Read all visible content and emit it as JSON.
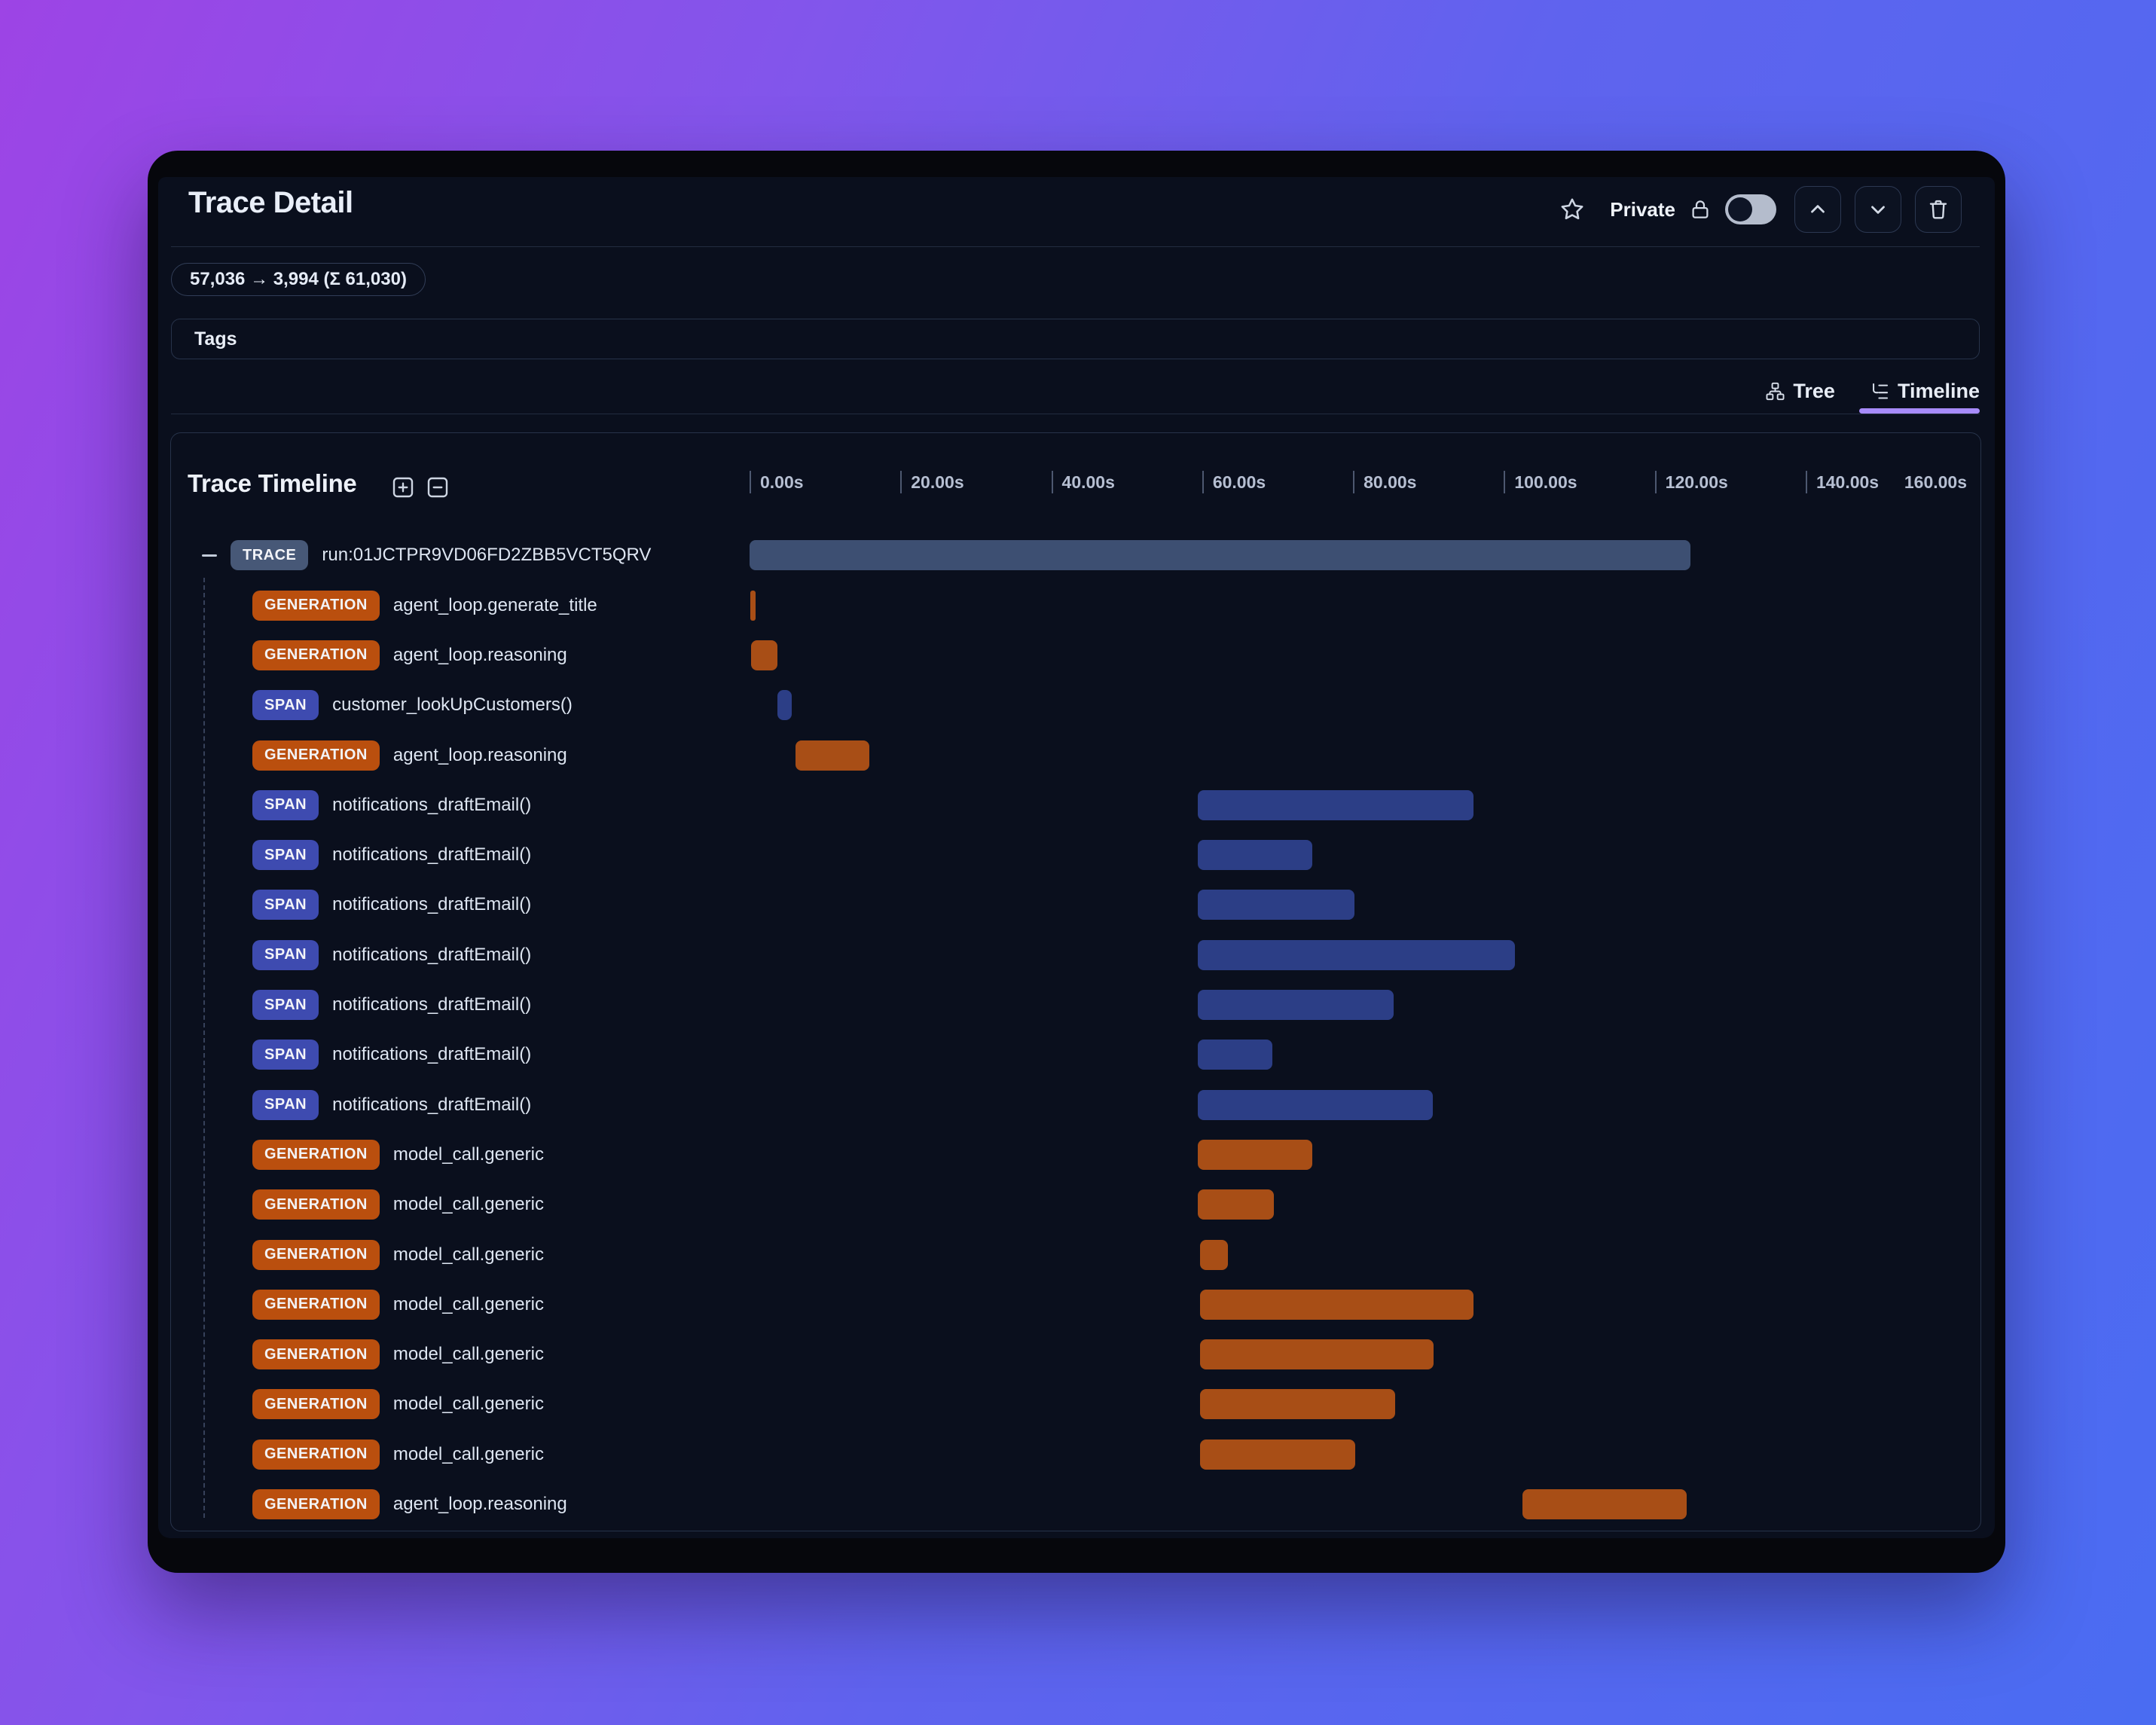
{
  "header": {
    "title": "Trace Detail",
    "privacy_label": "Private",
    "privacy_toggle_state": "off"
  },
  "token_usage": "57,036 → 3,994 (Σ 61,030)",
  "tags_label": "Tags",
  "view_tabs": {
    "tree": "Tree",
    "timeline": "Timeline",
    "active": "Timeline"
  },
  "timeline": {
    "title": "Trace Timeline",
    "axis": {
      "tick_seconds": [
        0,
        20,
        40,
        60,
        80,
        100,
        120,
        140
      ],
      "tick_labels": [
        "0.00s",
        "20.00s",
        "40.00s",
        "60.00s",
        "80.00s",
        "100.00s",
        "120.00s",
        "140.00s"
      ],
      "end_label": "160.00s"
    },
    "rows": [
      {
        "type": "TRACE",
        "label": "run:01JCTPR9VD06FD2ZBB5VCT5QRV",
        "depth": 0,
        "collapsible": true,
        "start_s": 0.0,
        "end_s": 124.7
      },
      {
        "type": "GENERATION",
        "label": "agent_loop.generate_title",
        "depth": 1,
        "collapsible": false,
        "start_s": 0.1,
        "end_s": 0.8
      },
      {
        "type": "GENERATION",
        "label": "agent_loop.reasoning",
        "depth": 1,
        "collapsible": false,
        "start_s": 0.2,
        "end_s": 3.7
      },
      {
        "type": "SPAN",
        "label": "customer_lookUpCustomers()",
        "depth": 1,
        "collapsible": false,
        "start_s": 3.7,
        "end_s": 5.6
      },
      {
        "type": "GENERATION",
        "label": "agent_loop.reasoning",
        "depth": 1,
        "collapsible": false,
        "start_s": 6.1,
        "end_s": 15.9
      },
      {
        "type": "SPAN",
        "label": "notifications_draftEmail()",
        "depth": 1,
        "collapsible": false,
        "start_s": 59.4,
        "end_s": 96.0
      },
      {
        "type": "SPAN",
        "label": "notifications_draftEmail()",
        "depth": 1,
        "collapsible": false,
        "start_s": 59.4,
        "end_s": 74.6
      },
      {
        "type": "SPAN",
        "label": "notifications_draftEmail()",
        "depth": 1,
        "collapsible": false,
        "start_s": 59.4,
        "end_s": 80.2
      },
      {
        "type": "SPAN",
        "label": "notifications_draftEmail()",
        "depth": 1,
        "collapsible": false,
        "start_s": 59.4,
        "end_s": 101.5
      },
      {
        "type": "SPAN",
        "label": "notifications_draftEmail()",
        "depth": 1,
        "collapsible": false,
        "start_s": 59.4,
        "end_s": 85.4
      },
      {
        "type": "SPAN",
        "label": "notifications_draftEmail()",
        "depth": 1,
        "collapsible": false,
        "start_s": 59.4,
        "end_s": 69.3
      },
      {
        "type": "SPAN",
        "label": "notifications_draftEmail()",
        "depth": 1,
        "collapsible": false,
        "start_s": 59.4,
        "end_s": 90.6
      },
      {
        "type": "GENERATION",
        "label": "model_call.generic",
        "depth": 1,
        "collapsible": false,
        "start_s": 59.4,
        "end_s": 74.6
      },
      {
        "type": "GENERATION",
        "label": "model_call.generic",
        "depth": 1,
        "collapsible": false,
        "start_s": 59.4,
        "end_s": 69.5
      },
      {
        "type": "GENERATION",
        "label": "model_call.generic",
        "depth": 1,
        "collapsible": false,
        "start_s": 59.7,
        "end_s": 63.4
      },
      {
        "type": "GENERATION",
        "label": "model_call.generic",
        "depth": 1,
        "collapsible": false,
        "start_s": 59.7,
        "end_s": 96.0
      },
      {
        "type": "GENERATION",
        "label": "model_call.generic",
        "depth": 1,
        "collapsible": false,
        "start_s": 59.7,
        "end_s": 90.7
      },
      {
        "type": "GENERATION",
        "label": "model_call.generic",
        "depth": 1,
        "collapsible": false,
        "start_s": 59.7,
        "end_s": 85.6
      },
      {
        "type": "GENERATION",
        "label": "model_call.generic",
        "depth": 1,
        "collapsible": false,
        "start_s": 59.7,
        "end_s": 80.3
      },
      {
        "type": "GENERATION",
        "label": "agent_loop.reasoning",
        "depth": 1,
        "collapsible": false,
        "start_s": 102.5,
        "end_s": 124.2
      }
    ]
  },
  "colors": {
    "background_gradient_start": "#9d44e5",
    "background_gradient_end": "#4a6cf2",
    "window_frame": "#06070c",
    "app_background": "#0a0f1d",
    "panel_border": "#27334a",
    "tab_underline_accent": "#a78bfa",
    "trace_badge": "#475877",
    "trace_bar": "#3d4f72",
    "generation_badge": "#ba4f0e",
    "generation_bar": "#a84e16",
    "span_badge": "#3e4bb0",
    "span_bar": "#2c3e86",
    "toggle_track": "#b4bccc",
    "toggle_knob": "#0e1526",
    "text_primary": "#e9eef8",
    "text_muted": "#b6bfd2"
  }
}
